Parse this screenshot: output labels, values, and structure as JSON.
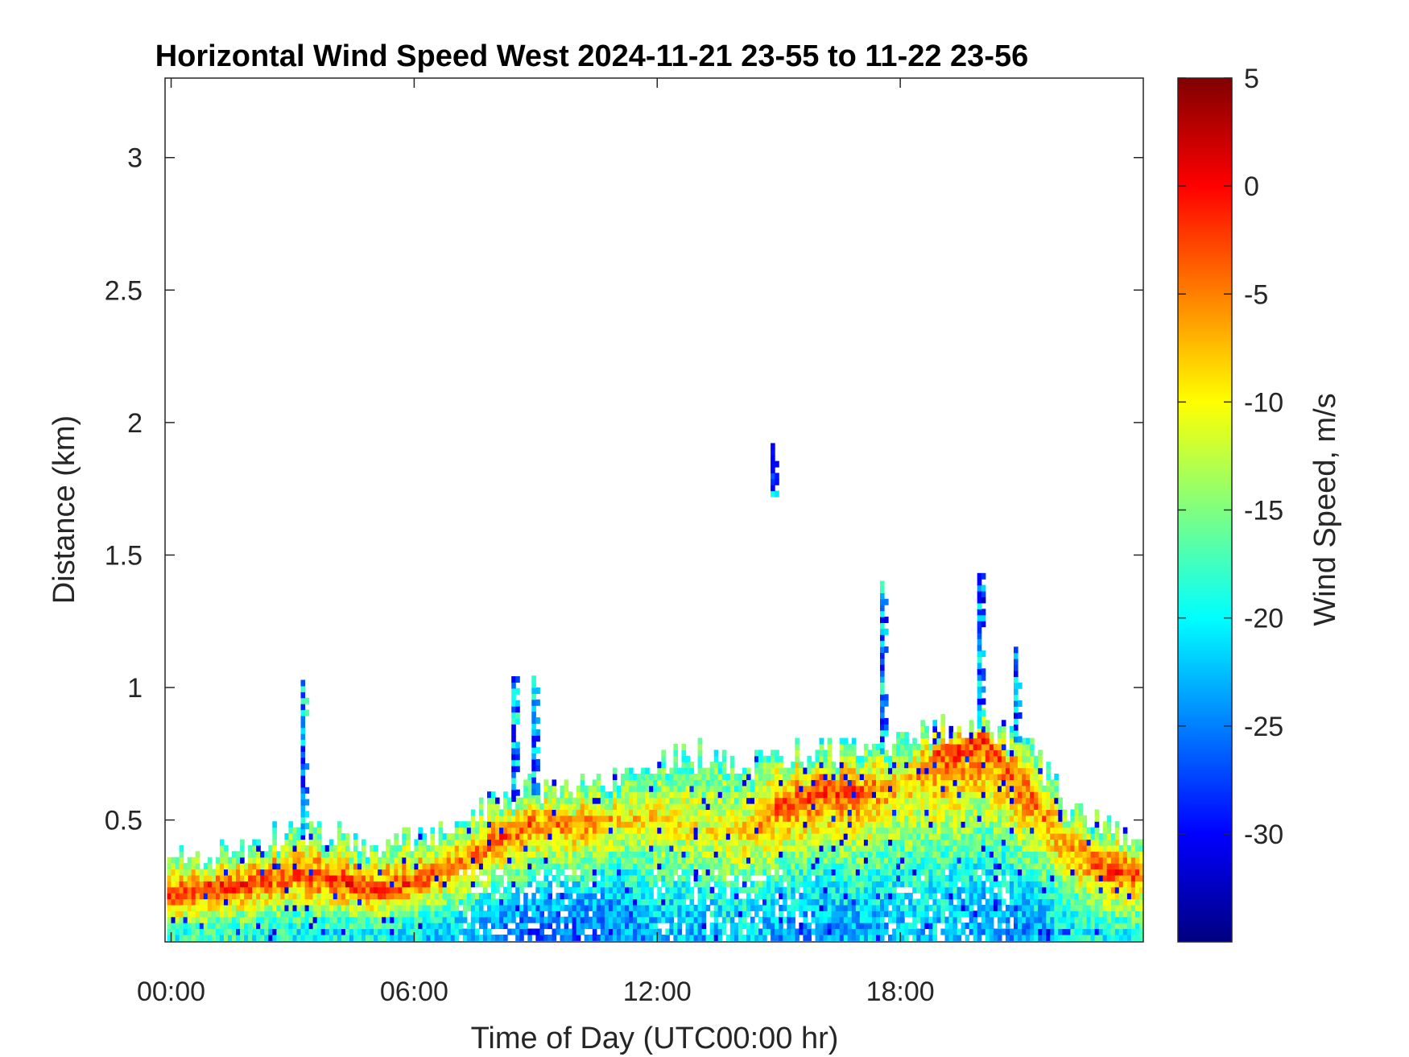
{
  "chart_data": {
    "type": "heatmap",
    "title": "Horizontal Wind Speed West 2024-11-21 23-55 to 11-22 23-56",
    "xlabel": "Time of Day (UTC00:00 hr)",
    "ylabel": "Distance (km)",
    "colorbar_label": "Wind Speed, m/s",
    "x_ticks": [
      "00:00",
      "06:00",
      "12:00",
      "18:00"
    ],
    "x_tick_hours": [
      0,
      6,
      12,
      18
    ],
    "xlim_hours": [
      -0.15,
      24.0
    ],
    "y_ticks": [
      "0.5",
      "1",
      "1.5",
      "2",
      "2.5",
      "3"
    ],
    "y_tick_values": [
      0.5,
      1,
      1.5,
      2,
      2.5,
      3
    ],
    "ylim": [
      0.04,
      3.3
    ],
    "colorbar_ticks": [
      "5",
      "0",
      "-5",
      "-10",
      "-15",
      "-20",
      "-25",
      "-30"
    ],
    "colorbar_tick_values": [
      5,
      0,
      -5,
      -10,
      -15,
      -20,
      -25,
      -30
    ],
    "clim": [
      -35,
      5
    ],
    "colormap": "jet",
    "grid": false,
    "data_profile": {
      "time_hours": [
        0,
        1,
        2,
        3,
        4,
        5,
        6,
        7,
        8,
        9,
        10,
        11,
        12,
        13,
        14,
        15,
        16,
        17,
        18,
        19,
        20,
        21,
        22,
        23,
        24
      ],
      "top_height_km": [
        0.32,
        0.34,
        0.36,
        0.45,
        0.42,
        0.38,
        0.4,
        0.45,
        0.55,
        0.6,
        0.58,
        0.65,
        0.7,
        0.72,
        0.68,
        0.72,
        0.75,
        0.72,
        0.78,
        0.82,
        0.85,
        0.78,
        0.55,
        0.45,
        0.4
      ],
      "core_height_km": [
        0.2,
        0.23,
        0.25,
        0.28,
        0.26,
        0.22,
        0.25,
        0.32,
        0.42,
        0.48,
        0.47,
        0.5,
        0.5,
        0.45,
        0.42,
        0.55,
        0.6,
        0.6,
        0.62,
        0.75,
        0.8,
        0.62,
        0.4,
        0.3,
        0.28
      ],
      "core_speed_ms": [
        -2,
        -1,
        -2,
        -3,
        -1,
        -2,
        -3,
        -4,
        -3,
        -4,
        -5,
        -8,
        -9,
        -10,
        -9,
        -3,
        -2,
        -3,
        -8,
        -2,
        -2,
        -3,
        -6,
        -2,
        -3
      ],
      "surface_speed_ms": [
        -18,
        -18,
        -19,
        -20,
        -20,
        -20,
        -21,
        -22,
        -25,
        -27,
        -26,
        -25,
        -22,
        -23,
        -21,
        -24,
        -24,
        -23,
        -22,
        -22,
        -24,
        -24,
        -21,
        -19,
        -19
      ],
      "plumes": [
        {
          "t_hours": 3.2,
          "top_km": 1.02
        },
        {
          "t_hours": 8.4,
          "top_km": 1.04
        },
        {
          "t_hours": 8.9,
          "top_km": 1.04
        },
        {
          "t_hours": 14.8,
          "bottom_km": 1.72,
          "top_km": 1.92
        },
        {
          "t_hours": 17.5,
          "top_km": 1.4
        },
        {
          "t_hours": 19.9,
          "top_km": 1.43
        },
        {
          "t_hours": 20.8,
          "top_km": 1.14
        }
      ]
    }
  }
}
